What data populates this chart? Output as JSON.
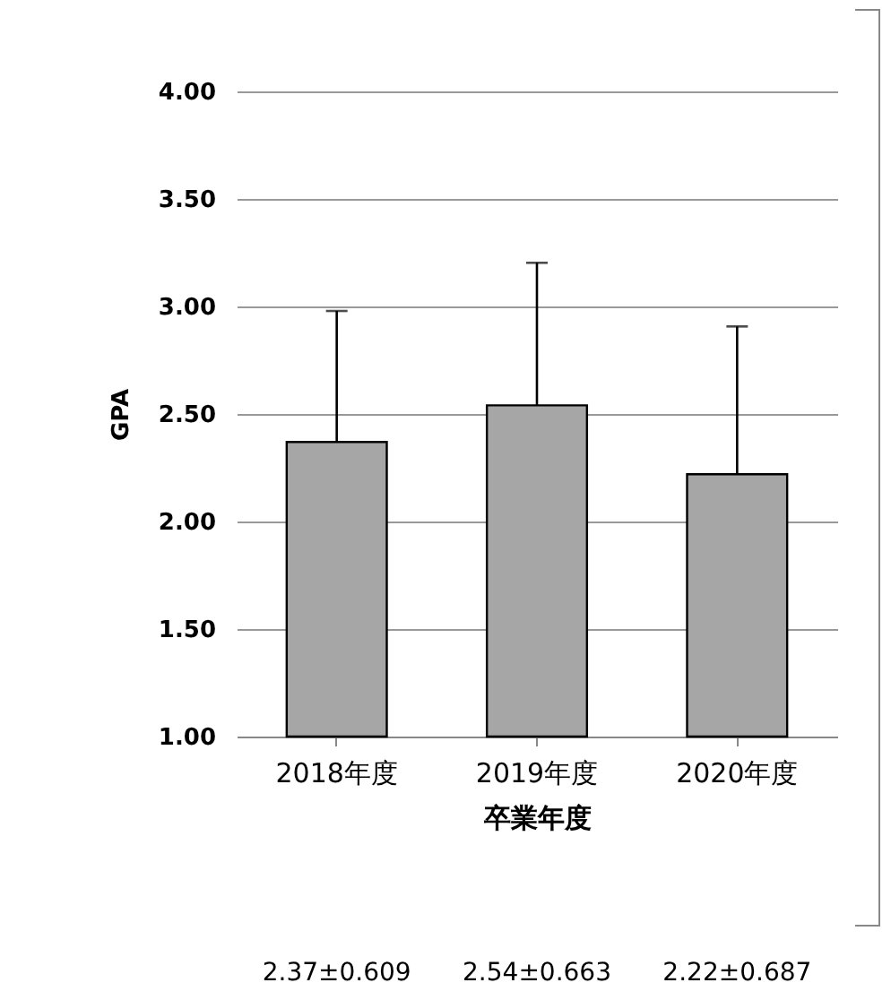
{
  "chart_data": {
    "type": "bar",
    "xlabel": "卒業年度",
    "ylabel": "GPA",
    "categories": [
      "2018年度",
      "2019年度",
      "2020年度"
    ],
    "values": [
      2.37,
      2.54,
      2.22
    ],
    "errors": [
      0.609,
      0.663,
      0.687
    ],
    "value_labels": [
      "2.37±0.609",
      "2.54±0.663",
      "2.22±0.687"
    ],
    "color": "#a6a6a6",
    "ylim": [
      1,
      4
    ],
    "yticks": [
      {
        "value": 1,
        "label": "1.00"
      },
      {
        "value": 1.5,
        "label": "1.50"
      },
      {
        "value": 2,
        "label": "2.00"
      },
      {
        "value": 2.5,
        "label": "2.50"
      },
      {
        "value": 3,
        "label": "3.00"
      },
      {
        "value": 3.5,
        "label": "3.50"
      },
      {
        "value": 4,
        "label": "4.00"
      }
    ],
    "grid": "y"
  }
}
